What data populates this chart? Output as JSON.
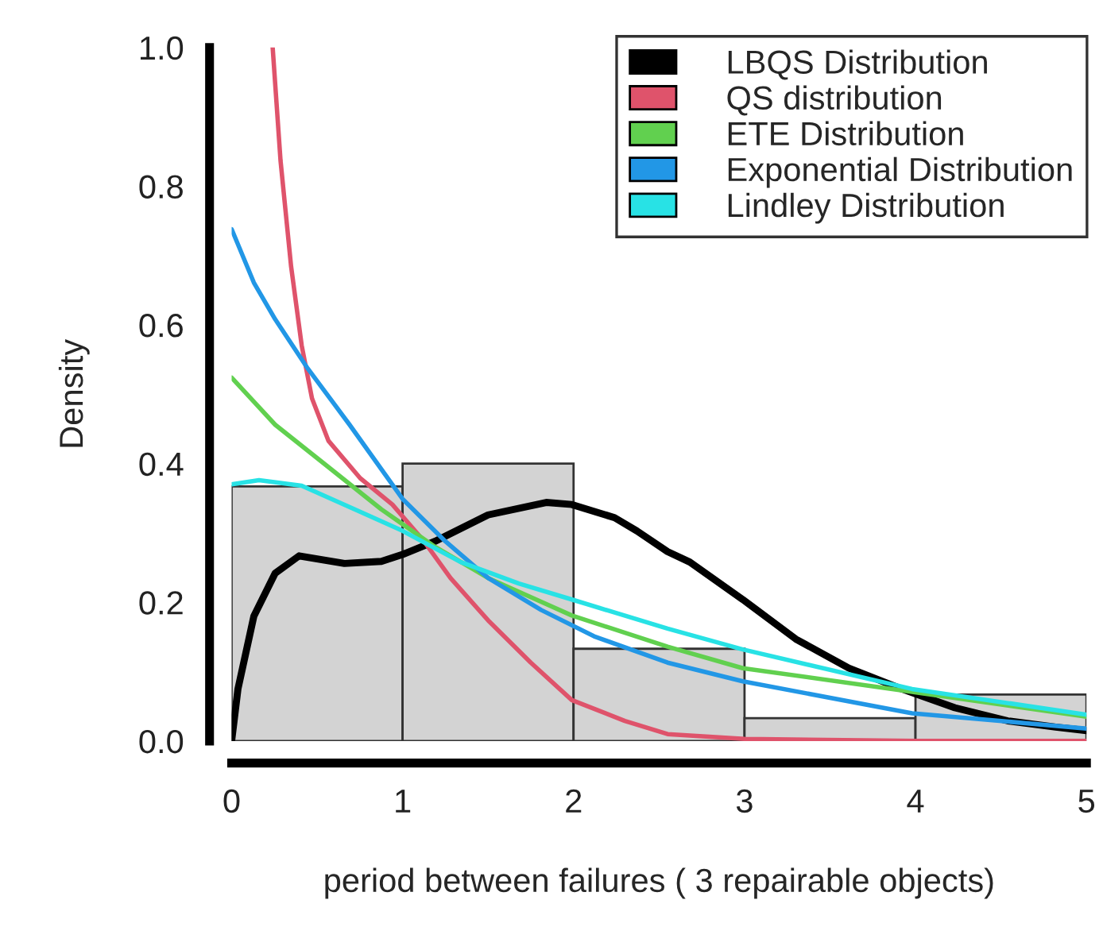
{
  "chart_data": {
    "type": "histogram",
    "xlabel": "period between failures ( 3 repairable objects)",
    "ylabel": "Density",
    "bins": [
      0,
      1,
      2,
      3,
      4,
      5
    ],
    "values": [
      0.367,
      0.4,
      0.133,
      0.033,
      0.067
    ],
    "color": "#d3d3d3",
    "xlim": [
      0,
      5
    ],
    "ylim": [
      0,
      1
    ],
    "xticks": [
      0,
      1,
      2,
      3,
      4,
      5
    ],
    "yticks": [
      {
        "value": 0,
        "label": "0.0"
      },
      0.2,
      0.4,
      0.6,
      0.8,
      {
        "value": 1,
        "label": "1.0"
      }
    ],
    "grid": false,
    "legend": "top right",
    "series": [
      {
        "type": "line",
        "name": "LBQS Distribution",
        "color": "#000000",
        "x": [
          0,
          0.037,
          0.13,
          0.255,
          0.395,
          0.66,
          0.876,
          1.0,
          1.19,
          1.5,
          1.84,
          1.99,
          2.24,
          2.37,
          2.55,
          2.68,
          2.99,
          3.3,
          3.61,
          3.92,
          4.23,
          4.54,
          4.82,
          5.0
        ],
        "values": [
          0,
          0.075,
          0.18,
          0.242,
          0.267,
          0.256,
          0.259,
          0.269,
          0.288,
          0.326,
          0.344,
          0.341,
          0.322,
          0.303,
          0.273,
          0.258,
          0.204,
          0.147,
          0.105,
          0.075,
          0.048,
          0.029,
          0.02,
          0.015
        ]
      },
      {
        "type": "line",
        "name": "QS distribution",
        "color": "#df536b",
        "x": [
          0.24,
          0.286,
          0.348,
          0.41,
          0.47,
          0.566,
          0.752,
          0.94,
          1.125,
          1.28,
          1.5,
          1.75,
          1.99,
          2.3,
          2.55,
          3.0,
          4.0,
          5.0
        ],
        "values": [
          1.0,
          0.837,
          0.684,
          0.57,
          0.494,
          0.433,
          0.379,
          0.341,
          0.288,
          0.235,
          0.174,
          0.113,
          0.059,
          0.029,
          0.01,
          0.003,
          0,
          0
        ]
      },
      {
        "type": "line",
        "name": "ETE Distribution",
        "color": "#61d04f",
        "x": [
          0,
          0.255,
          0.566,
          0.876,
          1.19,
          1.5,
          1.99,
          2.55,
          2.99,
          3.98,
          5.0
        ],
        "values": [
          0.524,
          0.456,
          0.395,
          0.334,
          0.28,
          0.235,
          0.181,
          0.136,
          0.105,
          0.071,
          0.035
        ]
      },
      {
        "type": "line",
        "name": "Exponential Distribution",
        "color": "#2297e6",
        "x": [
          0,
          0.13,
          0.255,
          0.44,
          0.69,
          1.0,
          1.25,
          1.5,
          1.81,
          2.12,
          2.55,
          2.99,
          3.98,
          5.0
        ],
        "values": [
          0.738,
          0.661,
          0.608,
          0.539,
          0.456,
          0.349,
          0.288,
          0.235,
          0.189,
          0.151,
          0.113,
          0.086,
          0.04,
          0.018
        ]
      },
      {
        "type": "line",
        "name": "Lindley Distribution",
        "color": "#28e2e5",
        "x": [
          0,
          0.16,
          0.41,
          0.72,
          1.0,
          1.34,
          1.68,
          1.99,
          2.55,
          2.99,
          3.98,
          5.0
        ],
        "values": [
          0.37,
          0.376,
          0.368,
          0.334,
          0.303,
          0.258,
          0.227,
          0.204,
          0.162,
          0.132,
          0.075,
          0.038
        ]
      }
    ]
  }
}
